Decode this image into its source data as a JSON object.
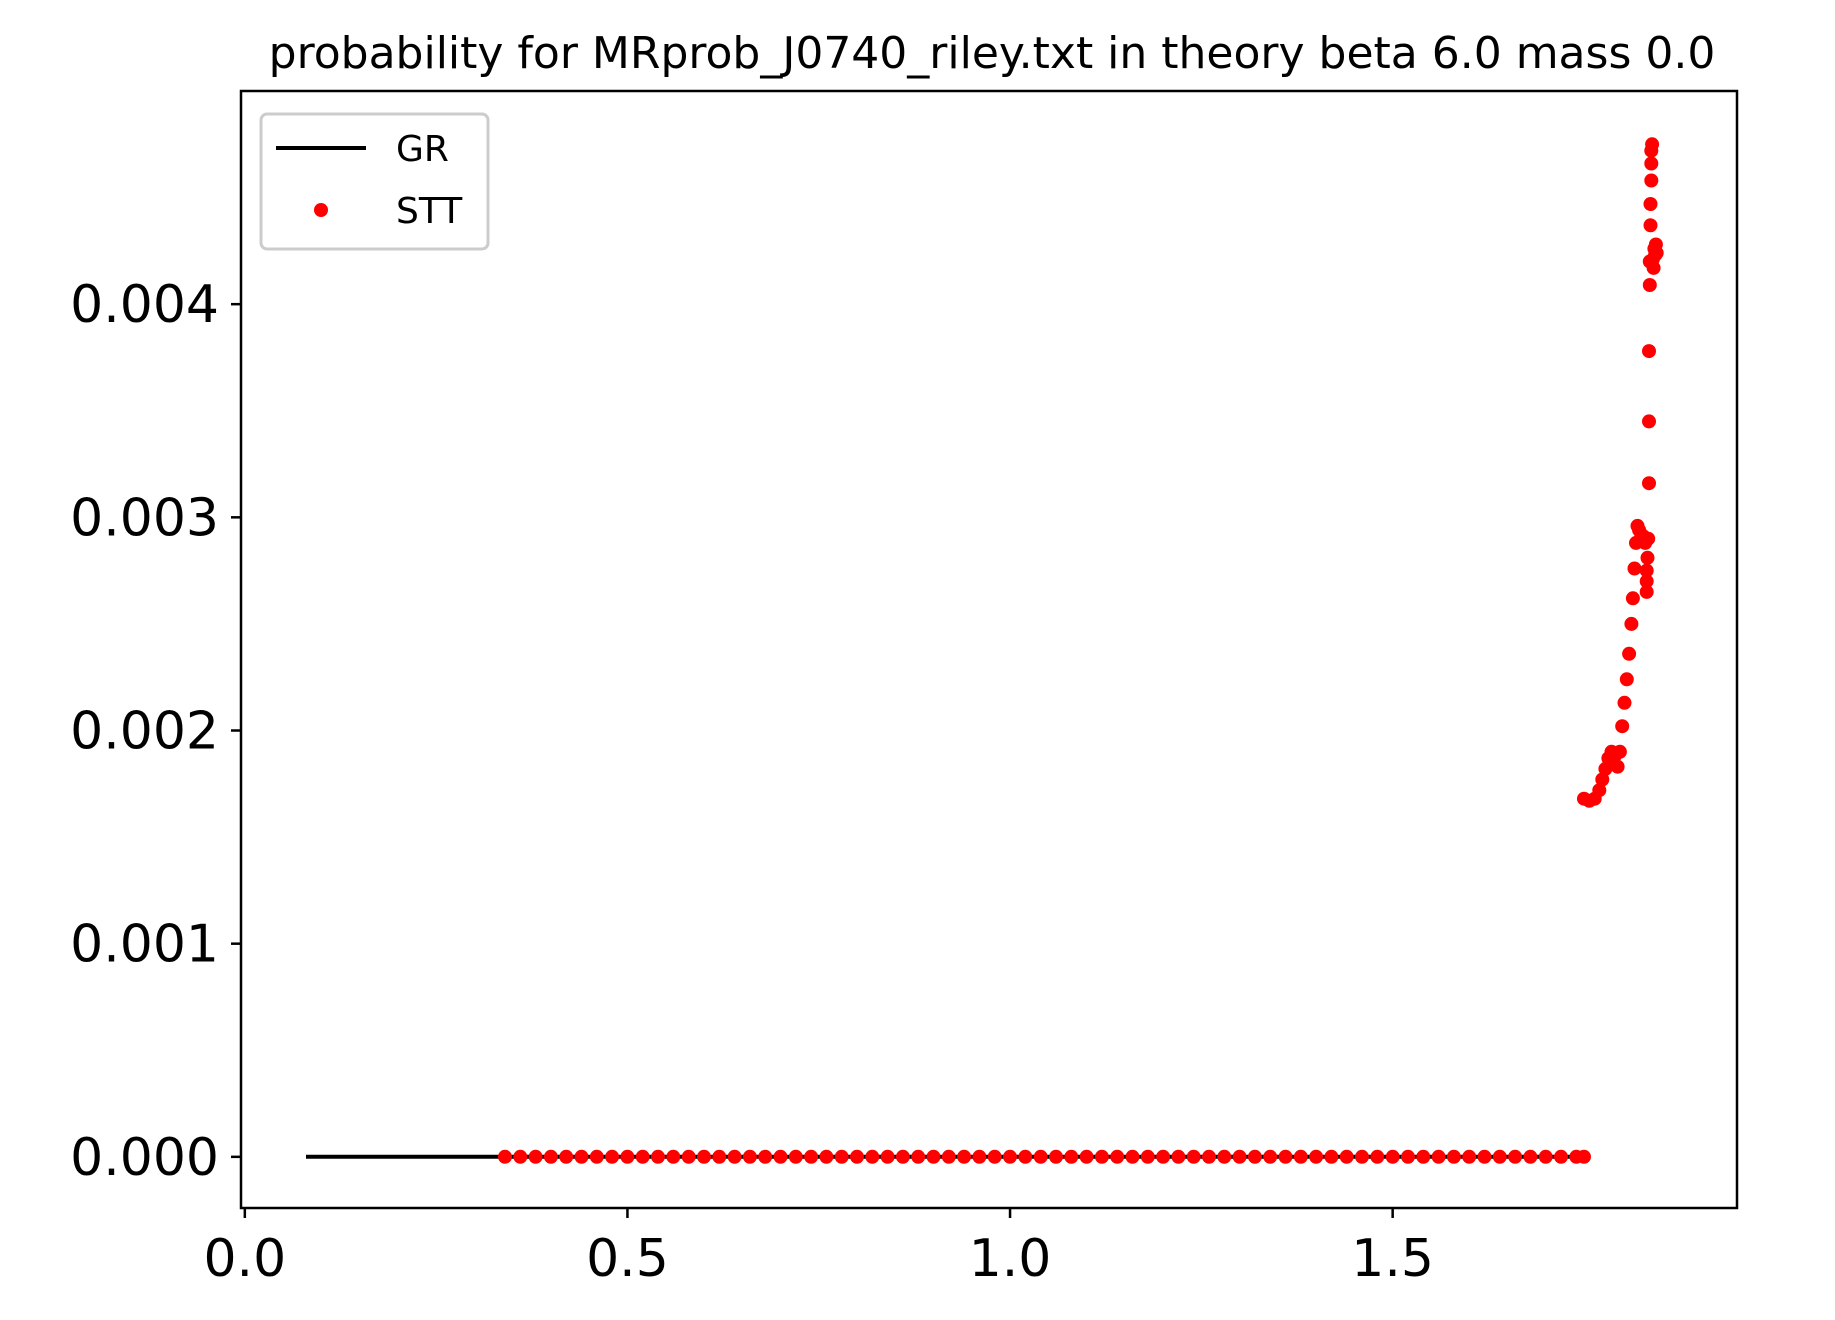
{
  "chart_data": {
    "type": "scatter",
    "title": "probability for MRprob_J0740_riley.txt in theory beta 6.0 mass 0.0",
    "xlabel": "",
    "ylabel": "",
    "xlim": [
      -0.005,
      1.95
    ],
    "ylim": [
      -0.00024,
      0.005
    ],
    "x_ticks": [
      0.0,
      0.5,
      1.0,
      1.5
    ],
    "x_tick_labels": [
      "0.0",
      "0.5",
      "1.0",
      "1.5"
    ],
    "y_ticks": [
      0.0,
      0.001,
      0.002,
      0.003,
      0.004
    ],
    "y_tick_labels": [
      "0.000",
      "0.001",
      "0.002",
      "0.003",
      "0.004"
    ],
    "grid": false,
    "legend_position": "upper-left",
    "series": [
      {
        "name": "GR",
        "style": "line",
        "color": "#000000",
        "points": [
          [
            0.08,
            0.0
          ],
          [
            1.75,
            0.0
          ]
        ]
      },
      {
        "name": "STT",
        "style": "markers",
        "color": "#ff0000",
        "points": [
          [
            0.34,
            0.0
          ],
          [
            0.36,
            0.0
          ],
          [
            0.38,
            0.0
          ],
          [
            0.4,
            0.0
          ],
          [
            0.42,
            0.0
          ],
          [
            0.44,
            0.0
          ],
          [
            0.46,
            0.0
          ],
          [
            0.48,
            0.0
          ],
          [
            0.5,
            0.0
          ],
          [
            0.52,
            0.0
          ],
          [
            0.54,
            0.0
          ],
          [
            0.56,
            0.0
          ],
          [
            0.58,
            0.0
          ],
          [
            0.6,
            0.0
          ],
          [
            0.62,
            0.0
          ],
          [
            0.64,
            0.0
          ],
          [
            0.66,
            0.0
          ],
          [
            0.68,
            0.0
          ],
          [
            0.7,
            0.0
          ],
          [
            0.72,
            0.0
          ],
          [
            0.74,
            0.0
          ],
          [
            0.76,
            0.0
          ],
          [
            0.78,
            0.0
          ],
          [
            0.8,
            0.0
          ],
          [
            0.82,
            0.0
          ],
          [
            0.84,
            0.0
          ],
          [
            0.86,
            0.0
          ],
          [
            0.88,
            0.0
          ],
          [
            0.9,
            0.0
          ],
          [
            0.92,
            0.0
          ],
          [
            0.94,
            0.0
          ],
          [
            0.96,
            0.0
          ],
          [
            0.98,
            0.0
          ],
          [
            1.0,
            0.0
          ],
          [
            1.02,
            0.0
          ],
          [
            1.04,
            0.0
          ],
          [
            1.06,
            0.0
          ],
          [
            1.08,
            0.0
          ],
          [
            1.1,
            0.0
          ],
          [
            1.12,
            0.0
          ],
          [
            1.14,
            0.0
          ],
          [
            1.16,
            0.0
          ],
          [
            1.18,
            0.0
          ],
          [
            1.2,
            0.0
          ],
          [
            1.22,
            0.0
          ],
          [
            1.24,
            0.0
          ],
          [
            1.26,
            0.0
          ],
          [
            1.28,
            0.0
          ],
          [
            1.3,
            0.0
          ],
          [
            1.32,
            0.0
          ],
          [
            1.34,
            0.0
          ],
          [
            1.36,
            0.0
          ],
          [
            1.38,
            0.0
          ],
          [
            1.4,
            0.0
          ],
          [
            1.42,
            0.0
          ],
          [
            1.44,
            0.0
          ],
          [
            1.46,
            0.0
          ],
          [
            1.48,
            0.0
          ],
          [
            1.5,
            0.0
          ],
          [
            1.52,
            0.0
          ],
          [
            1.54,
            0.0
          ],
          [
            1.56,
            0.0
          ],
          [
            1.58,
            0.0
          ],
          [
            1.6,
            0.0
          ],
          [
            1.62,
            0.0
          ],
          [
            1.64,
            0.0
          ],
          [
            1.66,
            0.0
          ],
          [
            1.68,
            0.0
          ],
          [
            1.7,
            0.0
          ],
          [
            1.72,
            0.0
          ],
          [
            1.74,
            0.0
          ],
          [
            1.75,
            0.0
          ],
          [
            1.75,
            0.00168
          ],
          [
            1.757,
            0.00167
          ],
          [
            1.764,
            0.00168
          ],
          [
            1.77,
            0.00172
          ],
          [
            1.774,
            0.00177
          ],
          [
            1.778,
            0.00182
          ],
          [
            1.782,
            0.00187
          ],
          [
            1.786,
            0.0019
          ],
          [
            1.79,
            0.00188
          ],
          [
            1.794,
            0.00183
          ],
          [
            1.797,
            0.0019
          ],
          [
            1.8,
            0.00202
          ],
          [
            1.803,
            0.00213
          ],
          [
            1.806,
            0.00224
          ],
          [
            1.809,
            0.00236
          ],
          [
            1.812,
            0.0025
          ],
          [
            1.814,
            0.00262
          ],
          [
            1.816,
            0.00276
          ],
          [
            1.818,
            0.00288
          ],
          [
            1.82,
            0.00296
          ],
          [
            1.822,
            0.00294
          ],
          [
            1.825,
            0.00292
          ],
          [
            1.828,
            0.00291
          ],
          [
            1.83,
            0.00288
          ],
          [
            1.832,
            0.00265
          ],
          [
            1.832,
            0.0027
          ],
          [
            1.832,
            0.00275
          ],
          [
            1.833,
            0.00281
          ],
          [
            1.834,
            0.0029
          ],
          [
            1.835,
            0.00316
          ],
          [
            1.835,
            0.00345
          ],
          [
            1.835,
            0.00378
          ],
          [
            1.836,
            0.00409
          ],
          [
            1.836,
            0.0042
          ],
          [
            1.837,
            0.00437
          ],
          [
            1.837,
            0.00447
          ],
          [
            1.838,
            0.00458
          ],
          [
            1.838,
            0.00466
          ],
          [
            1.838,
            0.00472
          ],
          [
            1.839,
            0.00475
          ],
          [
            1.84,
            0.00421
          ],
          [
            1.841,
            0.00417
          ],
          [
            1.842,
            0.00426
          ],
          [
            1.843,
            0.00423
          ],
          [
            1.844,
            0.00428
          ],
          [
            1.845,
            0.00424
          ]
        ]
      }
    ]
  }
}
